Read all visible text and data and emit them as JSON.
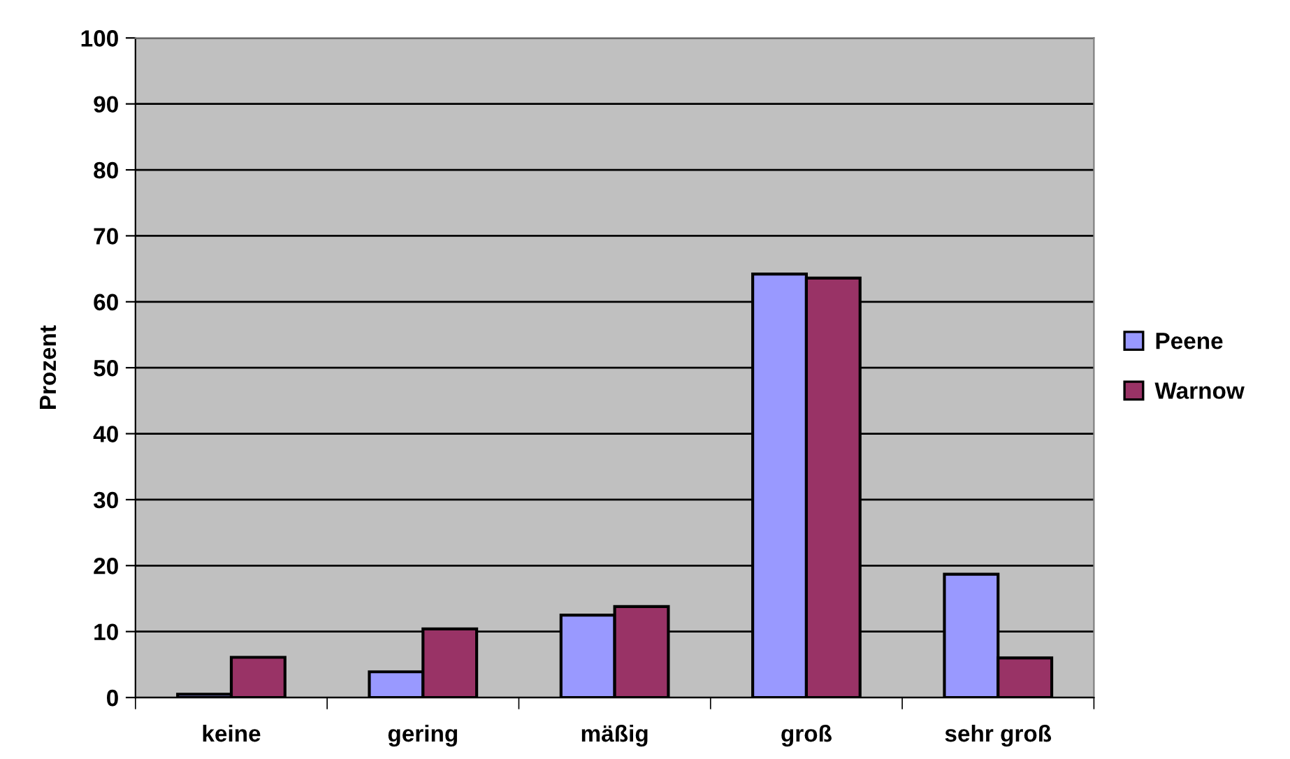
{
  "chart_data": {
    "type": "bar",
    "ylabel": "Prozent",
    "categories": [
      "keine",
      "gering",
      "mäßig",
      "groß",
      "sehr groß"
    ],
    "series": [
      {
        "name": "Peene",
        "color": "#9999ff",
        "values": [
          0.5,
          3.9,
          12.5,
          64.2,
          18.7
        ]
      },
      {
        "name": "Warnow",
        "color": "#993366",
        "values": [
          6.1,
          10.4,
          13.8,
          63.6,
          6.0
        ]
      }
    ],
    "ylim": [
      0,
      100
    ],
    "yticks": [
      0,
      10,
      20,
      30,
      40,
      50,
      60,
      70,
      80,
      90,
      100
    ],
    "grid": "y",
    "legend": "right"
  }
}
